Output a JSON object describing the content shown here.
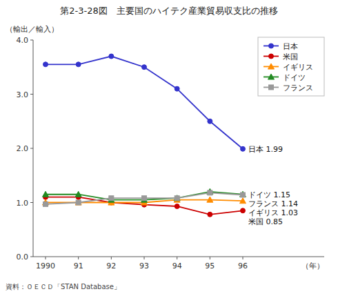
{
  "chart_data": {
    "type": "line",
    "title": "第2-3-28図　主要国のハイテク産業貿易収支比の推移",
    "y_label": "（輸出／輸入）",
    "x_label": "（年）",
    "source": "資料：ＯＥＣＤ「STAN Database」",
    "categories": [
      "1990",
      "91",
      "92",
      "93",
      "94",
      "95",
      "96"
    ],
    "series": [
      {
        "name": "日本",
        "color": "#3333CC",
        "marker": "circle",
        "values": [
          3.55,
          3.55,
          3.7,
          3.5,
          3.1,
          2.5,
          1.99
        ]
      },
      {
        "name": "米国",
        "color": "#CC0000",
        "marker": "circle",
        "values": [
          1.1,
          1.1,
          1.0,
          0.96,
          0.93,
          0.78,
          0.85
        ]
      },
      {
        "name": "イギリス",
        "color": "#FF8C00",
        "marker": "triangle",
        "values": [
          1.0,
          1.0,
          1.0,
          1.0,
          1.05,
          1.05,
          1.03
        ]
      },
      {
        "name": "ドイツ",
        "color": "#228B22",
        "marker": "triangle",
        "values": [
          1.15,
          1.15,
          1.05,
          1.05,
          1.08,
          1.2,
          1.15
        ]
      },
      {
        "name": "フランス",
        "color": "#999999",
        "marker": "square",
        "values": [
          0.97,
          1.0,
          1.08,
          1.08,
          1.08,
          1.18,
          1.14
        ]
      }
    ],
    "ylim": [
      0.0,
      4.0
    ],
    "yticks": [
      {
        "value": 0.0,
        "label": "0.0"
      },
      {
        "value": 1.0,
        "label": "1.0"
      },
      {
        "value": 2.0,
        "label": "2.0"
      },
      {
        "value": 3.0,
        "label": "3.0"
      },
      {
        "value": 4.0,
        "label": "4.0"
      }
    ],
    "grid": false,
    "legend": "upper right",
    "annotations": [
      {
        "text": "日本 1.99",
        "series": 0
      },
      {
        "text": "ドイツ 1.15",
        "series": 3
      },
      {
        "text": "フランス 1.14",
        "series": 4
      },
      {
        "text": "イギリス 1.03",
        "series": 2
      },
      {
        "text": "米国 0.85",
        "series": 1
      }
    ]
  }
}
